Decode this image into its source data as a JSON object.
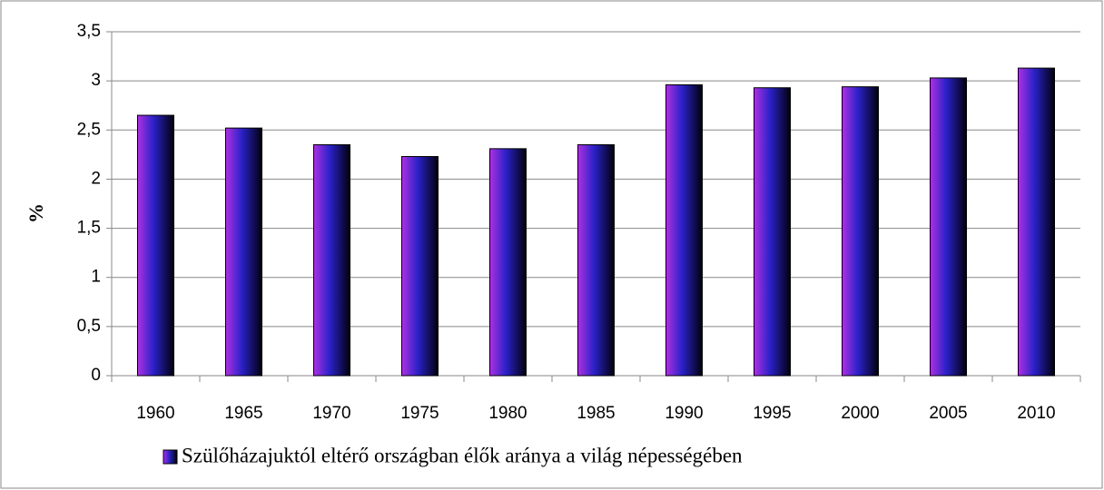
{
  "chart_data": {
    "type": "bar",
    "y_label": "%",
    "categories": [
      "1960",
      "1965",
      "1970",
      "1975",
      "1980",
      "1985",
      "1990",
      "1995",
      "2000",
      "2005",
      "2010"
    ],
    "series": [
      {
        "name": "Szülőházajuktól eltérő országban élők aránya a világ népességében",
        "color": "#2a20c8",
        "values": [
          2.65,
          2.52,
          2.35,
          2.23,
          2.31,
          2.35,
          2.96,
          2.93,
          2.94,
          3.03,
          3.13
        ]
      }
    ],
    "ylim": [
      0,
      3.5
    ],
    "yticks": [
      0,
      {
        "value": 0.5,
        "label": "0,5"
      },
      1,
      {
        "value": 1.5,
        "label": "1,5"
      },
      2,
      {
        "value": 2.5,
        "label": "2,5"
      },
      3,
      {
        "value": 3.5,
        "label": "3,5"
      }
    ],
    "grid": true,
    "legend": "bottom"
  }
}
